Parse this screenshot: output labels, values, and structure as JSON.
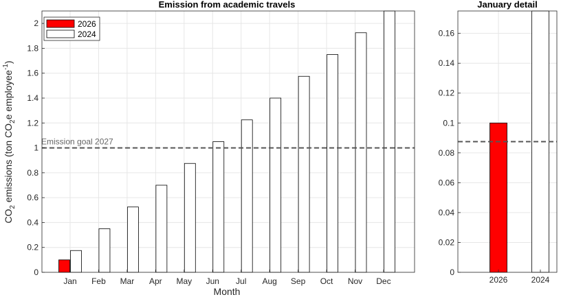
{
  "chart_data": [
    {
      "type": "bar",
      "title": "Emission from academic travels",
      "xlabel": "Month",
      "ylabel": {
        "p1": "CO",
        "sub1": "2",
        "p2": " emissions (ton CO",
        "sub2": "2",
        "p3": "e employee",
        "sup": "-1",
        "p4": ")"
      },
      "categories": [
        "Jan",
        "Feb",
        "Mar",
        "Apr",
        "May",
        "Jun",
        "Jul",
        "Aug",
        "Sep",
        "Oct",
        "Nov",
        "Dec"
      ],
      "series": [
        {
          "name": "2026",
          "color": "#ff0000",
          "values": [
            0.1,
            null,
            null,
            null,
            null,
            null,
            null,
            null,
            null,
            null,
            null,
            null
          ]
        },
        {
          "name": "2024",
          "color": "#ffffff",
          "values": [
            0.175,
            0.35,
            0.525,
            0.7,
            0.875,
            1.05,
            1.225,
            1.4,
            1.575,
            1.75,
            1.925,
            2.1
          ]
        }
      ],
      "ylim": [
        0,
        2.1
      ],
      "yticks": [
        0,
        0.2,
        0.4,
        0.6,
        0.8,
        1,
        1.2,
        1.4,
        1.6,
        1.8,
        2
      ],
      "ytick_labels": [
        "0",
        "0.2",
        "0.4",
        "0.6",
        "0.8",
        "1",
        "1.2",
        "1.4",
        "1.6",
        "1.8",
        "2"
      ],
      "grid": true,
      "legend": "top-left",
      "annotations": [
        {
          "text": "Emission goal 2027",
          "y": 1.0,
          "style": "dashed",
          "color": "#555555"
        }
      ]
    },
    {
      "type": "bar",
      "title": "January detail",
      "categories": [
        "2026",
        "2024"
      ],
      "values": [
        0.1,
        0.175
      ],
      "colors": [
        "#ff0000",
        "#ffffff"
      ],
      "ylim": [
        0,
        0.175
      ],
      "yticks": [
        0,
        0.02,
        0.04,
        0.06,
        0.08,
        0.1,
        0.12,
        0.14,
        0.16
      ],
      "ytick_labels": [
        "0",
        "0.02",
        "0.04",
        "0.06",
        "0.08",
        "0.1",
        "0.12",
        "0.14",
        "0.16"
      ],
      "grid": true,
      "reference_line": {
        "y": 0.0875,
        "style": "dashed",
        "color": "#555555"
      }
    }
  ]
}
